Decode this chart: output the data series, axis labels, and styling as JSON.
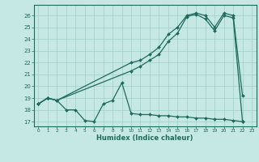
{
  "xlabel": "Humidex (Indice chaleur)",
  "bg_color": "#c5e8e4",
  "grid_color": "#a0cdc8",
  "line_color": "#1e6b5e",
  "xlim": [
    -0.5,
    23.5
  ],
  "ylim": [
    16.6,
    26.9
  ],
  "xticks": [
    0,
    1,
    2,
    3,
    4,
    5,
    6,
    7,
    8,
    9,
    10,
    11,
    12,
    13,
    14,
    15,
    16,
    17,
    18,
    19,
    20,
    21,
    22,
    23
  ],
  "yticks": [
    17,
    18,
    19,
    20,
    21,
    22,
    23,
    24,
    25,
    26
  ],
  "line1_x": [
    0,
    1,
    2,
    3,
    4,
    5,
    6,
    7,
    8,
    9,
    10,
    11,
    12,
    13,
    14,
    15,
    16,
    17,
    18,
    19,
    20,
    21,
    22
  ],
  "line1_y": [
    18.5,
    19.0,
    18.8,
    18.0,
    18.0,
    17.1,
    17.0,
    18.5,
    18.8,
    20.3,
    17.7,
    17.6,
    17.6,
    17.5,
    17.5,
    17.4,
    17.4,
    17.3,
    17.3,
    17.2,
    17.2,
    17.1,
    17.0
  ],
  "line2_x": [
    0,
    1,
    2,
    10,
    11,
    12,
    13,
    14,
    15,
    16,
    17,
    18,
    19,
    20,
    21,
    22
  ],
  "line2_y": [
    18.5,
    19.0,
    18.8,
    22.0,
    22.2,
    22.7,
    23.3,
    24.4,
    25.0,
    26.0,
    26.2,
    26.0,
    25.0,
    26.2,
    26.0,
    19.2
  ],
  "line3_x": [
    0,
    1,
    2,
    10,
    11,
    12,
    13,
    14,
    15,
    16,
    17,
    18,
    19,
    20,
    21,
    22
  ],
  "line3_y": [
    18.5,
    19.0,
    18.8,
    21.3,
    21.7,
    22.2,
    22.7,
    23.8,
    24.5,
    25.9,
    26.1,
    25.7,
    24.7,
    26.0,
    25.8,
    17.0
  ]
}
